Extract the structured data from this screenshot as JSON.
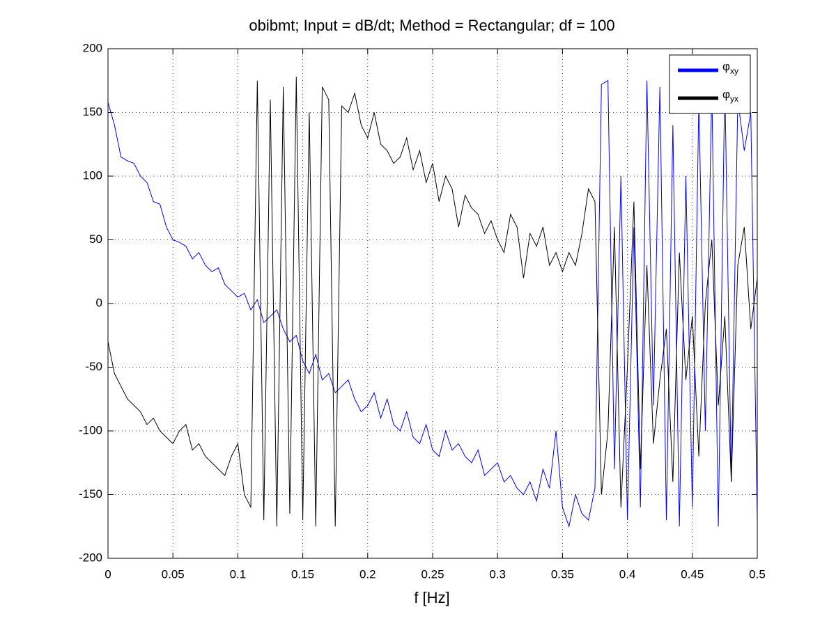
{
  "chart_data": {
    "type": "line",
    "title": "obibmt; Input = dB/dt; Method = Rectangular; df = 100",
    "xlabel": "f [Hz]",
    "x": [
      0,
      0.005,
      0.01,
      0.015,
      0.02,
      0.025,
      0.03,
      0.035,
      0.04,
      0.045,
      0.05,
      0.055,
      0.06,
      0.065,
      0.07,
      0.075,
      0.08,
      0.085,
      0.09,
      0.095,
      0.1,
      0.105,
      0.11,
      0.115,
      0.12,
      0.125,
      0.13,
      0.135,
      0.14,
      0.145,
      0.15,
      0.155,
      0.16,
      0.165,
      0.17,
      0.175,
      0.18,
      0.185,
      0.19,
      0.195,
      0.2,
      0.205,
      0.21,
      0.215,
      0.22,
      0.225,
      0.23,
      0.235,
      0.24,
      0.245,
      0.25,
      0.255,
      0.26,
      0.265,
      0.27,
      0.275,
      0.28,
      0.285,
      0.29,
      0.295,
      0.3,
      0.305,
      0.31,
      0.315,
      0.32,
      0.325,
      0.33,
      0.335,
      0.34,
      0.345,
      0.35,
      0.355,
      0.36,
      0.365,
      0.37,
      0.375,
      0.38,
      0.385,
      0.39,
      0.395,
      0.4,
      0.405,
      0.41,
      0.415,
      0.42,
      0.425,
      0.43,
      0.435,
      0.44,
      0.445,
      0.45,
      0.455,
      0.46,
      0.465,
      0.47,
      0.475,
      0.48,
      0.485,
      0.49,
      0.495,
      0.5
    ],
    "series": [
      {
        "name": "φxy",
        "color": "#0000ff",
        "values": [
          158,
          140,
          115,
          112,
          110,
          100,
          95,
          80,
          78,
          60,
          50,
          48,
          45,
          35,
          40,
          30,
          25,
          28,
          15,
          10,
          5,
          8,
          -5,
          3,
          -15,
          -10,
          -5,
          -20,
          -30,
          -25,
          -45,
          -55,
          -40,
          -60,
          -55,
          -70,
          -65,
          -60,
          -75,
          -85,
          -80,
          -70,
          -90,
          -75,
          -95,
          -100,
          -85,
          -105,
          -110,
          -95,
          -115,
          -120,
          -100,
          -115,
          -110,
          -120,
          -125,
          -115,
          -135,
          -130,
          -125,
          -140,
          -135,
          -145,
          -150,
          -140,
          -155,
          -130,
          -145,
          -100,
          -160,
          -175,
          -150,
          -165,
          -170,
          -145,
          172,
          175,
          -130,
          100,
          -170,
          60,
          -160,
          175,
          -80,
          170,
          -170,
          140,
          -175,
          100,
          -160,
          160,
          -100,
          170,
          -175,
          175,
          -140,
          160,
          120,
          150,
          -170
        ]
      },
      {
        "name": "φyx",
        "color": "#000000",
        "values": [
          -30,
          -55,
          -65,
          -75,
          -80,
          -85,
          -95,
          -90,
          -100,
          -105,
          -110,
          -100,
          -95,
          -115,
          -110,
          -120,
          -125,
          -130,
          -135,
          -120,
          -110,
          -150,
          -160,
          175,
          -170,
          160,
          -175,
          170,
          -165,
          178,
          -170,
          150,
          -175,
          170,
          160,
          -175,
          155,
          150,
          165,
          140,
          130,
          150,
          125,
          120,
          110,
          115,
          130,
          105,
          120,
          95,
          110,
          80,
          100,
          90,
          60,
          85,
          75,
          70,
          55,
          65,
          50,
          40,
          70,
          60,
          20,
          55,
          45,
          60,
          30,
          40,
          25,
          40,
          30,
          55,
          90,
          80,
          -150,
          -100,
          60,
          -160,
          -50,
          80,
          -130,
          30,
          -110,
          -60,
          -20,
          -140,
          40,
          -60,
          -10,
          -120,
          0,
          50,
          -80,
          -10,
          -140,
          30,
          60,
          -20,
          20
        ]
      }
    ],
    "xlim": [
      0,
      0.5
    ],
    "xticks": [
      0,
      0.05,
      0.1,
      0.15,
      0.2,
      0.25,
      0.3,
      0.35,
      0.4,
      0.45,
      0.5
    ],
    "ylim": [
      -200,
      200
    ],
    "yticks": [
      -200,
      -150,
      -100,
      -50,
      0,
      50,
      100,
      150,
      200
    ],
    "grid": true,
    "legend": "northeast"
  }
}
